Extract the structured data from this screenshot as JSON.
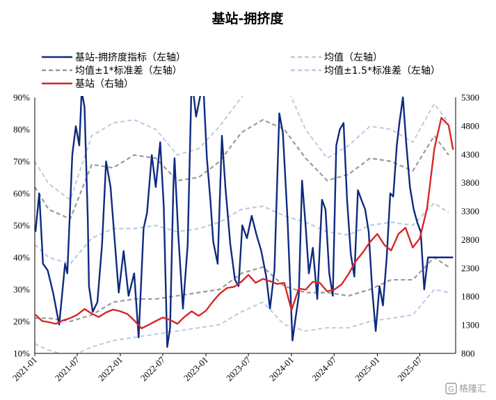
{
  "chart_data": {
    "type": "line",
    "title": "基站-拥挤度",
    "xlabel": "",
    "ylabel": "",
    "x_ticks": [
      "2021-01",
      "2021-07",
      "2022-01",
      "2022-07",
      "2023-01",
      "2023-07",
      "2024-01",
      "2024-07",
      "2025-01",
      "2025-07"
    ],
    "x_range": [
      "2021-01",
      "2025-11"
    ],
    "ylim": [
      10,
      90
    ],
    "y_ticks": [
      "10%",
      "20%",
      "30%",
      "40%",
      "50%",
      "60%",
      "70%",
      "80%",
      "90%"
    ],
    "y2lim": [
      800,
      5300
    ],
    "y2_ticks": [
      "800",
      "1300",
      "1800",
      "2300",
      "2800",
      "3300",
      "3800",
      "4300",
      "4800",
      "5300"
    ],
    "legend": [
      {
        "key": "crowd",
        "label": "基站-拥挤度指标（左轴）",
        "color": "#0d2a80",
        "style": "solid"
      },
      {
        "key": "mean",
        "label": "均值（左轴）",
        "color": "#b9cbe3",
        "style": "dashed"
      },
      {
        "key": "sd1",
        "label": "均值±1*标准差（左轴）",
        "color": "#9a9a9a",
        "style": "dashed"
      },
      {
        "key": "sd15",
        "label": "均值±1.5*标准差（左轴）",
        "color": "#b9cbe3",
        "style": "dashed"
      },
      {
        "key": "price",
        "label": "基站（右轴）",
        "color": "#d62728",
        "style": "solid"
      }
    ],
    "series": [
      {
        "key": "crowd",
        "name": "基站-拥挤度指标（左轴）",
        "axis": "left",
        "x": [
          "2021-01-04",
          "2021-01-20",
          "2021-02-05",
          "2021-02-25",
          "2021-03-20",
          "2021-04-15",
          "2021-05-10",
          "2021-05-20",
          "2021-06-10",
          "2021-06-25",
          "2021-07-10",
          "2021-07-20",
          "2021-08-01",
          "2021-08-15",
          "2021-08-20",
          "2021-09-05",
          "2021-09-25",
          "2021-10-15",
          "2021-11-01",
          "2021-11-20",
          "2021-12-05",
          "2021-12-25",
          "2022-01-15",
          "2022-02-05",
          "2022-03-01",
          "2022-03-20",
          "2022-04-10",
          "2022-04-25",
          "2022-05-15",
          "2022-06-01",
          "2022-06-20",
          "2022-07-05",
          "2022-07-20",
          "2022-08-01",
          "2022-08-15",
          "2022-08-20",
          "2022-09-05",
          "2022-09-25",
          "2022-10-15",
          "2022-11-01",
          "2022-11-20",
          "2022-12-01",
          "2022-12-20",
          "2023-01-05",
          "2023-01-20",
          "2023-02-01",
          "2023-02-20",
          "2023-03-10",
          "2023-03-25",
          "2023-04-15",
          "2023-05-05",
          "2023-05-20",
          "2023-06-05",
          "2023-06-25",
          "2023-07-15",
          "2023-08-05",
          "2023-08-25",
          "2023-09-15",
          "2023-10-01",
          "2023-10-20",
          "2023-11-10",
          "2023-11-25",
          "2023-12-15",
          "2024-01-05",
          "2024-01-20",
          "2024-02-01",
          "2024-02-15",
          "2024-03-01",
          "2024-03-15",
          "2024-04-01",
          "2024-04-20",
          "2024-05-10",
          "2024-05-25",
          "2024-06-10",
          "2024-06-25",
          "2024-07-10",
          "2024-07-25",
          "2024-08-10",
          "2024-08-25",
          "2024-09-10",
          "2024-09-25",
          "2024-10-10",
          "2024-10-25",
          "2024-11-10",
          "2024-11-25",
          "2024-12-10",
          "2024-12-25",
          "2025-01-10",
          "2025-01-25",
          "2025-02-10",
          "2025-02-25",
          "2025-03-10",
          "2025-03-25",
          "2025-04-05",
          "2025-04-20",
          "2025-05-05",
          "2025-05-20",
          "2025-06-05",
          "2025-06-20",
          "2025-07-05",
          "2025-07-20",
          "2025-08-05",
          "2025-08-20",
          "2025-09-05",
          "2025-09-20",
          "2025-10-05",
          "2025-10-20",
          "2025-11-05",
          "2025-11-20"
        ],
        "values": [
          48,
          60,
          38,
          36,
          29,
          19,
          38,
          35,
          72,
          81,
          75,
          92,
          87,
          52,
          31,
          23,
          26,
          44,
          70,
          62,
          48,
          29,
          42,
          28,
          35,
          15,
          49,
          54,
          72,
          62,
          76,
          56,
          12,
          18,
          62,
          71,
          47,
          24,
          44,
          96,
          84,
          88,
          95,
          71,
          58,
          45,
          38,
          78,
          62,
          44,
          33,
          31,
          50,
          46,
          53,
          47,
          42,
          34,
          24,
          36,
          85,
          79,
          52,
          14,
          22,
          28,
          64,
          50,
          35,
          43,
          27,
          58,
          55,
          35,
          28,
          75,
          80,
          82,
          58,
          41,
          34,
          61,
          58,
          55,
          48,
          30,
          17,
          31,
          25,
          40,
          60,
          59,
          75,
          82,
          90,
          75,
          62,
          55,
          51,
          48,
          30,
          40,
          40,
          40,
          40,
          40,
          40,
          40,
          40
        ],
        "values_note": ""
      },
      {
        "key": "mean",
        "name": "均值（左轴）",
        "axis": "left",
        "x": [
          "2021-01",
          "2021-03",
          "2021-06",
          "2021-09",
          "2021-12",
          "2022-03",
          "2022-06",
          "2022-09",
          "2022-12",
          "2023-03",
          "2023-06",
          "2023-09",
          "2023-12",
          "2024-03",
          "2024-06",
          "2024-09",
          "2024-12",
          "2025-03",
          "2025-06",
          "2025-09",
          "2025-11"
        ],
        "values": [
          44,
          40,
          38,
          46,
          49,
          49,
          50,
          48,
          49,
          51,
          55,
          56,
          53,
          51,
          48,
          47,
          50,
          51,
          50,
          57,
          54
        ]
      },
      {
        "key": "sd1_upper",
        "name": "均值+1*标准差（左轴）",
        "axis": "left",
        "x": [
          "2021-01",
          "2021-03",
          "2021-06",
          "2021-09",
          "2021-12",
          "2022-03",
          "2022-06",
          "2022-09",
          "2022-12",
          "2023-03",
          "2023-06",
          "2023-09",
          "2023-12",
          "2024-03",
          "2024-06",
          "2024-09",
          "2024-12",
          "2025-03",
          "2025-06",
          "2025-09",
          "2025-11"
        ],
        "values": [
          62,
          55,
          52,
          69,
          68,
          72,
          71,
          64,
          65,
          70,
          79,
          83,
          80,
          71,
          64,
          66,
          71,
          70,
          67,
          78,
          72
        ]
      },
      {
        "key": "sd1_lower",
        "name": "均值-1*标准差（左轴）",
        "axis": "left",
        "x": [
          "2021-01",
          "2021-03",
          "2021-06",
          "2021-09",
          "2021-12",
          "2022-03",
          "2022-06",
          "2022-09",
          "2022-12",
          "2023-03",
          "2023-06",
          "2023-09",
          "2023-12",
          "2024-03",
          "2024-06",
          "2024-09",
          "2024-12",
          "2025-03",
          "2025-06",
          "2025-09",
          "2025-11"
        ],
        "values": [
          21,
          21,
          20,
          22,
          26,
          27,
          27,
          28,
          29,
          30,
          35,
          37,
          31,
          29,
          29,
          28,
          30,
          33,
          33,
          40,
          37
        ]
      },
      {
        "key": "sd15_upper",
        "name": "均值+1.5*标准差（左轴）",
        "axis": "left",
        "x": [
          "2021-01",
          "2021-03",
          "2021-06",
          "2021-09",
          "2021-12",
          "2022-03",
          "2022-06",
          "2022-09",
          "2022-12",
          "2023-03",
          "2023-06",
          "2023-09",
          "2023-12",
          "2024-03",
          "2024-06",
          "2024-09",
          "2024-12",
          "2025-03",
          "2025-06",
          "2025-09",
          "2025-11"
        ],
        "values": [
          70,
          63,
          58,
          78,
          82,
          83,
          80,
          72,
          74,
          81,
          90,
          98,
          95,
          80,
          71,
          75,
          81,
          80,
          76,
          88,
          82
        ]
      },
      {
        "key": "sd15_lower",
        "name": "均值-1.5*标准差（左轴）",
        "axis": "left",
        "x": [
          "2021-01",
          "2021-03",
          "2021-06",
          "2021-09",
          "2021-12",
          "2022-03",
          "2022-06",
          "2022-09",
          "2022-12",
          "2023-03",
          "2023-06",
          "2023-09",
          "2023-12",
          "2024-03",
          "2024-06",
          "2024-09",
          "2024-12",
          "2025-03",
          "2025-06",
          "2025-09",
          "2025-11"
        ],
        "values": [
          13,
          11,
          9,
          12,
          14,
          15,
          16,
          17,
          18,
          19,
          23,
          26,
          19,
          17,
          18,
          18,
          20,
          21,
          22,
          30,
          29
        ]
      },
      {
        "key": "price",
        "name": "基站（右轴）",
        "axis": "right",
        "x": [
          "2021-01-04",
          "2021-02-01",
          "2021-03-01",
          "2021-04-01",
          "2021-05-01",
          "2021-06-01",
          "2021-07-01",
          "2021-08-01",
          "2021-09-01",
          "2021-10-01",
          "2021-11-01",
          "2021-12-01",
          "2022-01-01",
          "2022-02-01",
          "2022-03-01",
          "2022-04-01",
          "2022-05-01",
          "2022-06-01",
          "2022-07-01",
          "2022-08-01",
          "2022-09-01",
          "2022-10-01",
          "2022-11-01",
          "2022-12-01",
          "2023-01-01",
          "2023-02-01",
          "2023-03-01",
          "2023-04-01",
          "2023-05-01",
          "2023-06-01",
          "2023-07-01",
          "2023-08-01",
          "2023-09-01",
          "2023-10-01",
          "2023-11-01",
          "2023-12-01",
          "2024-01-01",
          "2024-02-01",
          "2024-03-01",
          "2024-04-01",
          "2024-05-01",
          "2024-06-01",
          "2024-07-01",
          "2024-08-01",
          "2024-09-01",
          "2024-10-01",
          "2024-11-01",
          "2024-12-01",
          "2025-01-01",
          "2025-02-01",
          "2025-03-01",
          "2025-04-01",
          "2025-05-01",
          "2025-06-01",
          "2025-07-01",
          "2025-08-01",
          "2025-09-01",
          "2025-10-01",
          "2025-11-01",
          "2025-11-20"
        ],
        "values": [
          1480,
          1370,
          1350,
          1320,
          1380,
          1420,
          1480,
          1580,
          1500,
          1440,
          1520,
          1570,
          1540,
          1490,
          1380,
          1240,
          1300,
          1370,
          1430,
          1390,
          1320,
          1440,
          1540,
          1460,
          1550,
          1720,
          1850,
          1950,
          1970,
          2060,
          2180,
          2040,
          2110,
          2070,
          2020,
          2040,
          1560,
          1940,
          1920,
          2060,
          2040,
          1890,
          1920,
          2010,
          2200,
          2420,
          2580,
          2760,
          2900,
          2700,
          2610,
          2900,
          3010,
          2660,
          2820,
          3350,
          4390,
          4940,
          4810,
          4380
        ]
      }
    ]
  },
  "watermark": {
    "text": "格隆汇",
    "logo_letter": "G"
  }
}
